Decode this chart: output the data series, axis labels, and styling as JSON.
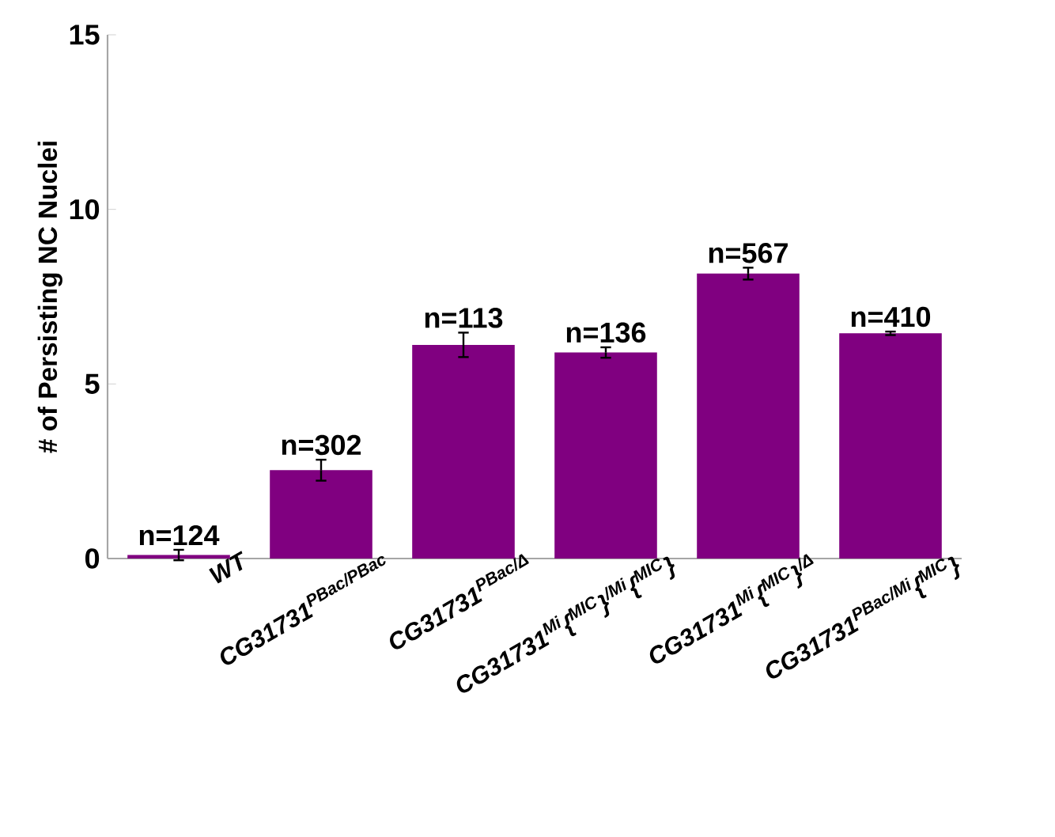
{
  "chart_data": {
    "type": "bar",
    "ylabel": "# of Persisting NC Nuclei",
    "categories": [
      "WT",
      "CG31731$^{PBac/PBac}$",
      "CG31731$^{PBac/Δ}$",
      "CG31731$^{Mi}${$^{MIC}$}$^{/Mi}${$^{MIC}$}",
      "CG31731$^{Mi}${$^{MIC}$}$^{/Δ}$",
      "CG31731$^{PBac/Mi}${$^{MIC}$}"
    ],
    "values": [
      0.1,
      2.53,
      6.12,
      5.9,
      8.16,
      6.45
    ],
    "errors": [
      0.15,
      0.3,
      0.35,
      0.15,
      0.17,
      0.05
    ],
    "annotations": [
      "n=124",
      "n=302",
      "n=113",
      "n=136",
      "n=567",
      "n=410"
    ],
    "color": "#800080",
    "ylim": [
      0,
      15
    ],
    "yticks": [
      0,
      5,
      10,
      15
    ],
    "grid": false
  }
}
